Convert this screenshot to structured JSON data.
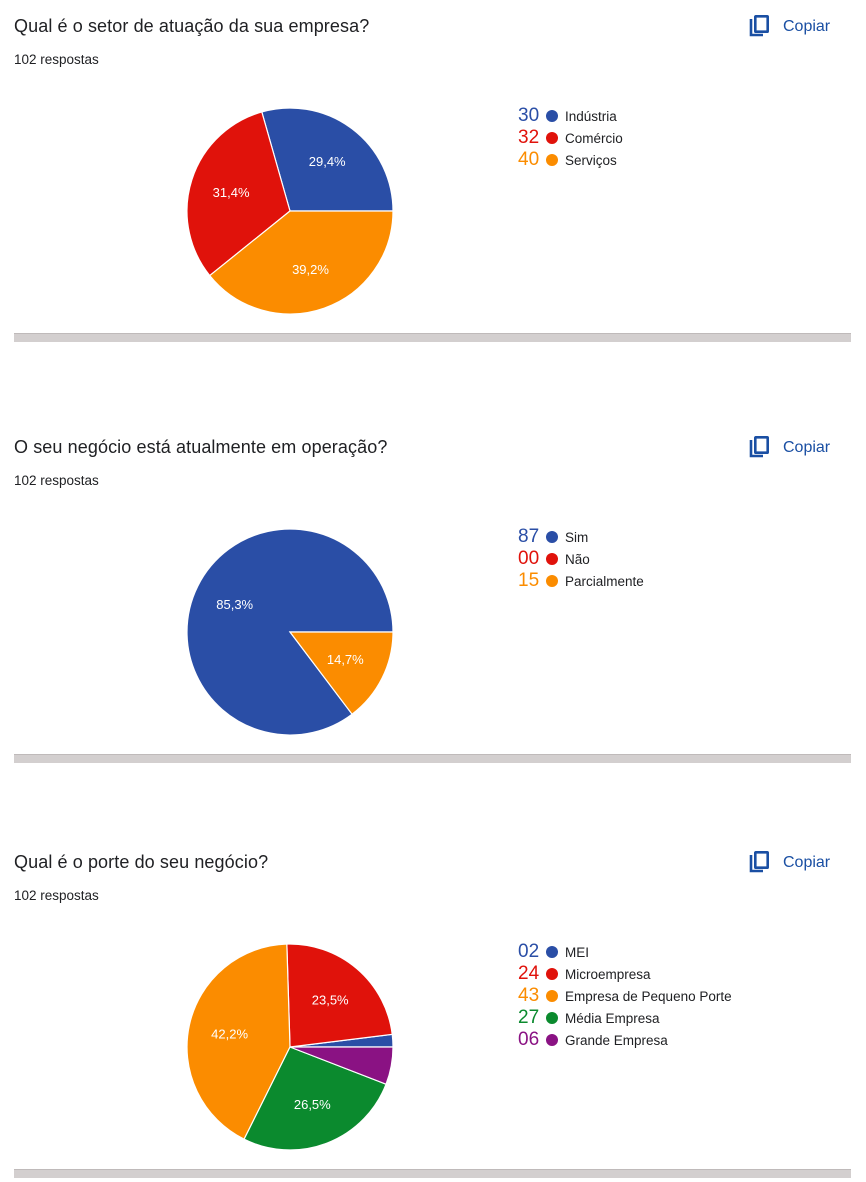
{
  "copy_label": "Copiar",
  "charts": [
    {
      "title": "Qual é o setor de atuação da sua empresa?",
      "responses": "102 respostas",
      "legend": [
        {
          "num": "30",
          "label": "Indústria",
          "color": "#2a4ea6"
        },
        {
          "num": "32",
          "label": "Comércio",
          "color": "#e0120b"
        },
        {
          "num": "40",
          "label": "Serviços",
          "color": "#fb8c00"
        }
      ]
    },
    {
      "title": "O seu negócio está atualmente em operação?",
      "responses": "102 respostas",
      "legend": [
        {
          "num": "87",
          "label": "Sim",
          "color": "#2a4ea6"
        },
        {
          "num": "00",
          "label": "Não",
          "color": "#e0120b"
        },
        {
          "num": "15",
          "label": "Parcialmente",
          "color": "#fb8c00"
        }
      ]
    },
    {
      "title": "Qual é o porte do seu negócio?",
      "responses": "102 respostas",
      "legend": [
        {
          "num": "02",
          "label": "MEI",
          "color": "#2a4ea6"
        },
        {
          "num": "24",
          "label": "Microempresa",
          "color": "#e0120b"
        },
        {
          "num": "43",
          "label": "Empresa de Pequeno Porte",
          "color": "#fb8c00"
        },
        {
          "num": "27",
          "label": "Média Empresa",
          "color": "#0b8a2e"
        },
        {
          "num": "06",
          "label": "Grande Empresa",
          "color": "#8a1283"
        }
      ]
    }
  ],
  "chart_data": [
    {
      "type": "pie",
      "categories": [
        "Indústria",
        "Comércio",
        "Serviços"
      ],
      "values": [
        30,
        32,
        40
      ],
      "labels": [
        "29,4%",
        "31,4%",
        "39,2%"
      ],
      "colors": [
        "#2a4ea6",
        "#e0120b",
        "#fb8c00"
      ]
    },
    {
      "type": "pie",
      "categories": [
        "Sim",
        "Não",
        "Parcialmente"
      ],
      "values": [
        87,
        0,
        15
      ],
      "labels": [
        "85,3%",
        "",
        "14,7%"
      ],
      "colors": [
        "#2a4ea6",
        "#e0120b",
        "#fb8c00"
      ]
    },
    {
      "type": "pie",
      "categories": [
        "MEI",
        "Microempresa",
        "Empresa de Pequeno Porte",
        "Média Empresa",
        "Grande Empresa"
      ],
      "values": [
        2,
        24,
        43,
        27,
        6
      ],
      "labels": [
        "",
        "23,5%",
        "42,2%",
        "26,5%",
        ""
      ],
      "colors": [
        "#2a4ea6",
        "#e0120b",
        "#fb8c00",
        "#0b8a2e",
        "#8a1283"
      ]
    }
  ]
}
